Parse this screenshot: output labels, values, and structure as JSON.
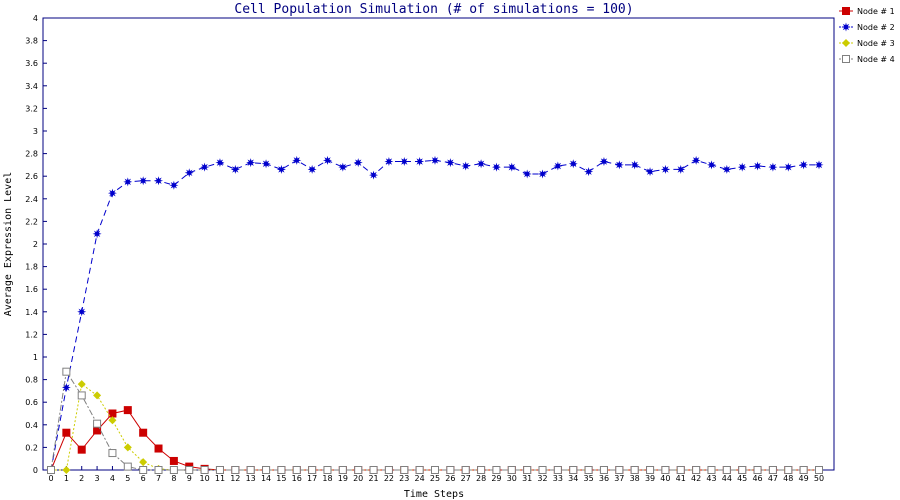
{
  "chart_data": {
    "type": "line",
    "title": "Cell Population Simulation (# of simulations = 100)",
    "xlabel": "Time Steps",
    "ylabel": "Average Expression Level",
    "xlim": [
      0,
      50
    ],
    "ylim": [
      0,
      4
    ],
    "x_ticks": [
      0,
      1,
      2,
      3,
      4,
      5,
      6,
      7,
      8,
      9,
      10,
      11,
      12,
      13,
      14,
      15,
      16,
      17,
      18,
      19,
      20,
      21,
      22,
      23,
      24,
      25,
      26,
      27,
      28,
      29,
      30,
      31,
      32,
      33,
      34,
      35,
      36,
      37,
      38,
      39,
      40,
      41,
      42,
      43,
      44,
      45,
      46,
      47,
      48,
      49,
      50
    ],
    "y_ticks": [
      0,
      0.2,
      0.4,
      0.6,
      0.8,
      1,
      1.2,
      1.4,
      1.6,
      1.8,
      2,
      2.2,
      2.4,
      2.6,
      2.8,
      3,
      3.2,
      3.4,
      3.6,
      3.8,
      4
    ],
    "grid": false,
    "legend_position": "right",
    "x": [
      0,
      1,
      2,
      3,
      4,
      5,
      6,
      7,
      8,
      9,
      10,
      11,
      12,
      13,
      14,
      15,
      16,
      17,
      18,
      19,
      20,
      21,
      22,
      23,
      24,
      25,
      26,
      27,
      28,
      29,
      30,
      31,
      32,
      33,
      34,
      35,
      36,
      37,
      38,
      39,
      40,
      41,
      42,
      43,
      44,
      45,
      46,
      47,
      48,
      49,
      50
    ],
    "series": [
      {
        "name": "Node # 1",
        "color": "#cc0000",
        "marker": "filled-square",
        "line": "solid",
        "values": [
          0,
          0.33,
          0.18,
          0.35,
          0.5,
          0.53,
          0.33,
          0.19,
          0.08,
          0.03,
          0.01,
          0,
          0,
          0,
          0,
          0,
          0,
          0,
          0,
          0,
          0,
          0,
          0,
          0,
          0,
          0,
          0,
          0,
          0,
          0,
          0,
          0,
          0,
          0,
          0,
          0,
          0,
          0,
          0,
          0,
          0,
          0,
          0,
          0,
          0,
          0,
          0,
          0,
          0,
          0,
          0
        ]
      },
      {
        "name": "Node # 2",
        "color": "#0000cc",
        "marker": "star",
        "line": "dashed",
        "values": [
          0,
          0.73,
          1.4,
          2.09,
          2.45,
          2.55,
          2.56,
          2.56,
          2.52,
          2.63,
          2.68,
          2.72,
          2.66,
          2.72,
          2.71,
          2.66,
          2.74,
          2.66,
          2.74,
          2.68,
          2.72,
          2.61,
          2.73,
          2.73,
          2.73,
          2.74,
          2.72,
          2.69,
          2.71,
          2.68,
          2.68,
          2.62,
          2.62,
          2.69,
          2.71,
          2.64,
          2.73,
          2.7,
          2.7,
          2.64,
          2.66,
          2.66,
          2.74,
          2.7,
          2.66,
          2.68,
          2.69,
          2.68,
          2.68,
          2.7,
          2.7
        ]
      },
      {
        "name": "Node # 3",
        "color": "#cccc00",
        "marker": "diamond",
        "line": "dotted",
        "values": [
          0,
          0,
          0.76,
          0.66,
          0.44,
          0.2,
          0.07,
          0.01,
          0,
          0,
          0,
          0,
          0,
          0,
          0,
          0,
          0,
          0,
          0,
          0,
          0,
          0,
          0,
          0,
          0,
          0,
          0,
          0,
          0,
          0,
          0,
          0,
          0,
          0,
          0,
          0,
          0,
          0,
          0,
          0,
          0,
          0,
          0,
          0,
          0,
          0,
          0,
          0,
          0,
          0,
          0
        ]
      },
      {
        "name": "Node # 4",
        "color": "#808080",
        "marker": "hollow-square",
        "line": "dashdot",
        "values": [
          0,
          0.87,
          0.66,
          0.41,
          0.15,
          0.03,
          0,
          0,
          0,
          0,
          0,
          0,
          0,
          0,
          0,
          0,
          0,
          0,
          0,
          0,
          0,
          0,
          0,
          0,
          0,
          0,
          0,
          0,
          0,
          0,
          0,
          0,
          0,
          0,
          0,
          0,
          0,
          0,
          0,
          0,
          0,
          0,
          0,
          0,
          0,
          0,
          0,
          0,
          0,
          0,
          0
        ]
      }
    ]
  }
}
